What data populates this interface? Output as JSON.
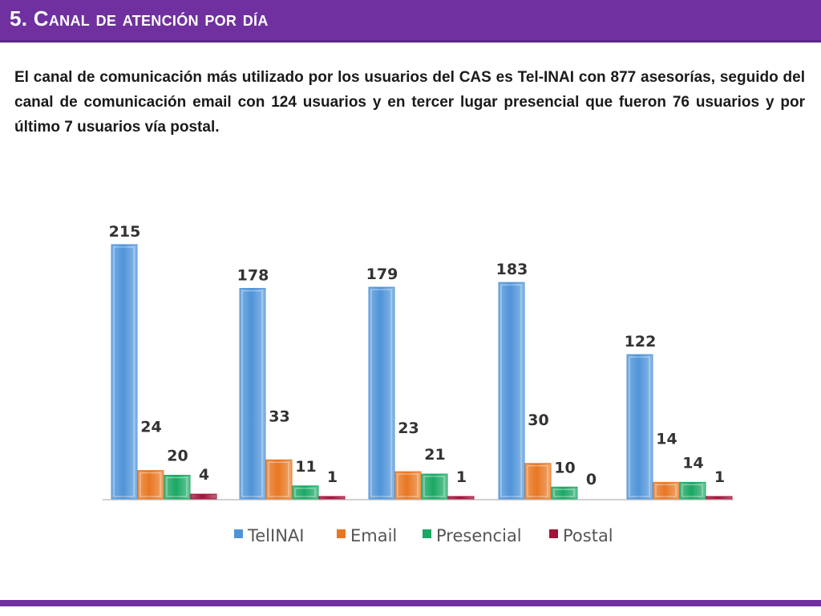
{
  "header": {
    "title": "5. Canal de atención por día"
  },
  "description": "El canal de comunicación más utilizado por los usuarios del CAS es Tel-INAI con 877 asesorías, seguido del canal de comunicación email con 124 usuarios y en tercer lugar presencial que fueron 76 usuarios y por último 7 usuarios vía postal.",
  "chart_data": {
    "type": "bar",
    "categories": [
      "",
      "",
      "",
      "",
      ""
    ],
    "series": [
      {
        "name": "TelINAI",
        "color": "#4f94d9",
        "values": [
          215,
          178,
          179,
          183,
          122
        ]
      },
      {
        "name": "Email",
        "color": "#e87722",
        "values": [
          24,
          33,
          23,
          30,
          14
        ]
      },
      {
        "name": "Presencial",
        "color": "#1aa864",
        "values": [
          20,
          11,
          21,
          10,
          14
        ]
      },
      {
        "name": "Postal",
        "color": "#a3123a",
        "values": [
          4,
          1,
          1,
          0,
          1
        ]
      }
    ],
    "ylim": [
      0,
      215
    ],
    "legend_position": "bottom",
    "grid": false,
    "title": "",
    "xlabel": "",
    "ylabel": ""
  }
}
